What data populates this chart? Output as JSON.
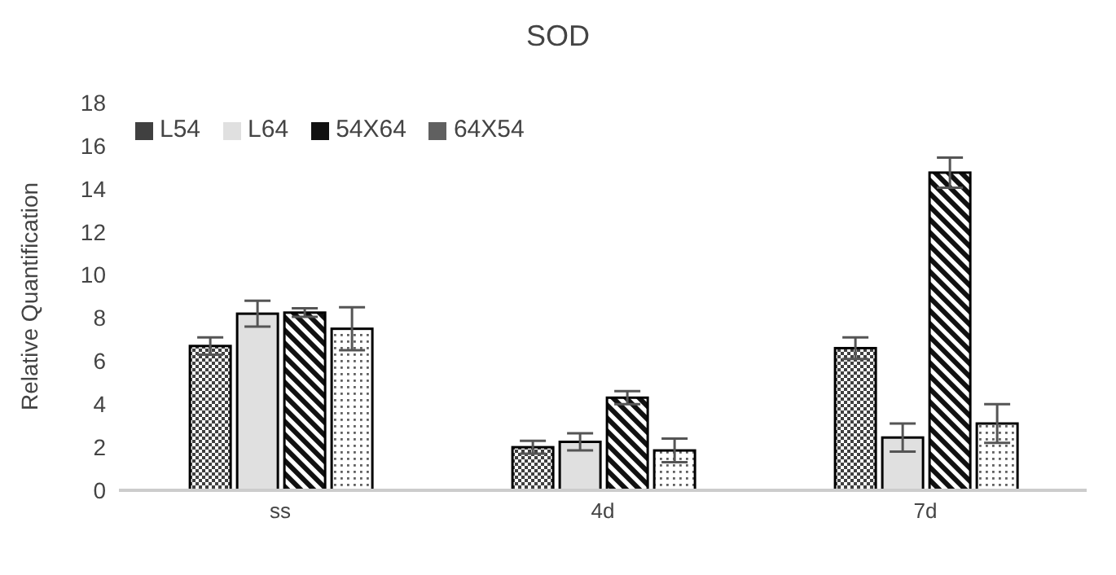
{
  "chart_data": {
    "type": "bar",
    "title": "SOD",
    "ylabel": "Relative Quantification",
    "categories": [
      "ss",
      "4d",
      "7d"
    ],
    "series": [
      {
        "name": "L54",
        "color": "#404040",
        "values": [
          6.7,
          2.0,
          6.6
        ],
        "errors": [
          0.4,
          0.3,
          0.5
        ]
      },
      {
        "name": "L64",
        "color": "#e0e0e0",
        "values": [
          8.2,
          2.25,
          2.45
        ],
        "errors": [
          0.6,
          0.4,
          0.65
        ]
      },
      {
        "name": "54X64",
        "color": "#111111",
        "values": [
          8.25,
          4.3,
          14.75
        ],
        "errors": [
          0.2,
          0.3,
          0.7
        ]
      },
      {
        "name": "64X54",
        "color": "#606060",
        "values": [
          7.5,
          1.85,
          3.1
        ],
        "errors": [
          1.0,
          0.55,
          0.9
        ]
      }
    ],
    "ylim": [
      0,
      18
    ],
    "yticks": [
      0,
      2,
      4,
      6,
      8,
      10,
      12,
      14,
      16,
      18
    ],
    "grid": false,
    "legend": "top left"
  }
}
